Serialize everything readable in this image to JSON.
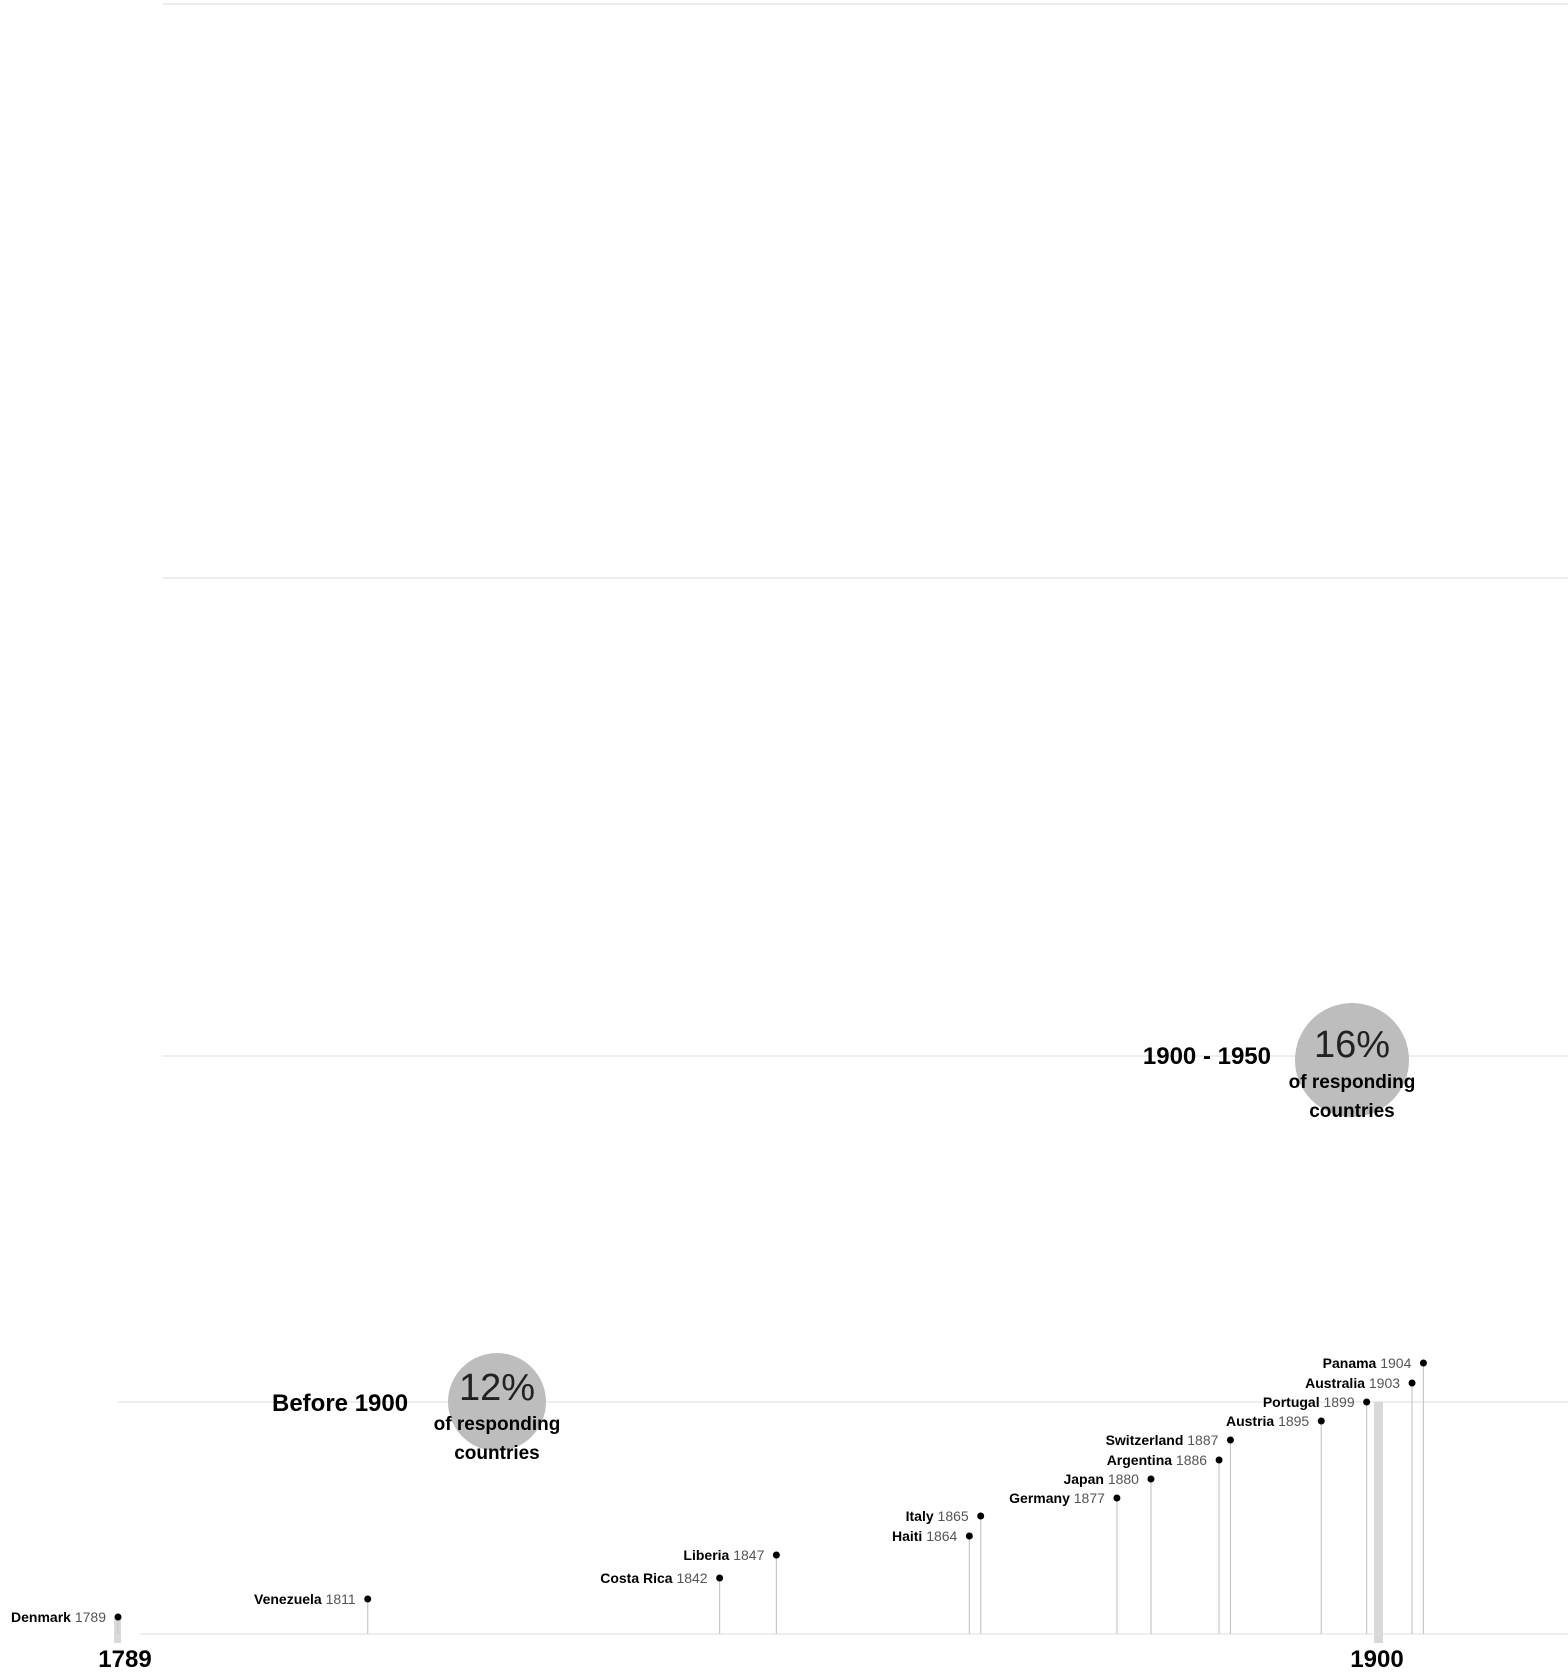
{
  "chart_data": {
    "type": "timeline",
    "x_unit": "year",
    "xlim": [
      1789,
      1912
    ],
    "axis_labels": [
      "1789",
      "1900"
    ],
    "periods": [
      {
        "title": "Before 1900",
        "percent": "12%",
        "caption_line1": "of responding",
        "caption_line2": "countries"
      },
      {
        "title": "1900 - 1950",
        "percent": "16%",
        "caption_line1": "of responding",
        "caption_line2": "countries"
      }
    ],
    "points": [
      {
        "name": "Denmark",
        "year": 1789
      },
      {
        "name": "Venezuela",
        "year": 1811
      },
      {
        "name": "Costa Rica",
        "year": 1842
      },
      {
        "name": "Liberia",
        "year": 1847
      },
      {
        "name": "Haiti",
        "year": 1864
      },
      {
        "name": "Italy",
        "year": 1865
      },
      {
        "name": "Germany",
        "year": 1877
      },
      {
        "name": "Japan",
        "year": 1880
      },
      {
        "name": "Argentina",
        "year": 1886
      },
      {
        "name": "Switzerland",
        "year": 1887
      },
      {
        "name": "Austria",
        "year": 1895
      },
      {
        "name": "Portugal",
        "year": 1899
      },
      {
        "name": "Australia",
        "year": 1903
      },
      {
        "name": "Panama",
        "year": 1904
      }
    ],
    "colors": {
      "point": "#000000",
      "stem": "#c8c8c8",
      "bubble": "#bdbdbd",
      "marker": "#d9d9d9",
      "gridline": "#dddddd"
    }
  }
}
